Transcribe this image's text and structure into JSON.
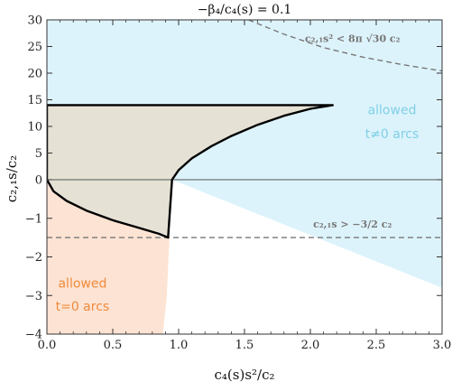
{
  "chart_data": {
    "type": "area",
    "title": "−β₄/c₄(s) = 0.1",
    "xlabel": "c₄(s)s²/c₂",
    "ylabel": "c₂,₁s/c₂",
    "xlim": [
      0,
      3
    ],
    "ylim": [
      -4,
      30
    ],
    "y_axis_piecewise": "linear for y between -4 and 0 (1 unit per tick); linear for y between 0 and 30 (5 units per tick)",
    "xticks": [
      "0.0",
      "0.5",
      "1.0",
      "1.5",
      "2.0",
      "2.5",
      "3.0"
    ],
    "yticks": [
      "−4",
      "−3",
      "−2",
      "−1",
      "0",
      "5",
      "10",
      "15",
      "20",
      "25",
      "30"
    ],
    "grid": false,
    "colors": {
      "blue_region": "#ddf3fb",
      "orange_region": "#fde3d3",
      "overlap_region": "#e5e2d5",
      "blue_text": "#7fd0e6",
      "orange_text": "#f08a3c",
      "dashed_lines": "#777777",
      "boundary": "#000000"
    },
    "series": [
      {
        "name": "blue region outer boundary",
        "style": "fill",
        "x": [
          0,
          0.95,
          3.0
        ],
        "y": [
          0,
          0,
          -2.8
        ]
      },
      {
        "name": "orange region right edge",
        "style": "fill",
        "x": [
          0,
          0.88,
          0.93,
          0.91,
          0.88
        ],
        "y": [
          0,
          -1.5,
          -1.5,
          -3.0,
          -4.0
        ]
      },
      {
        "name": "bold boundary",
        "style": "line",
        "x": [
          0,
          0,
          0.05,
          0.15,
          0.3,
          0.5,
          0.7,
          0.85,
          0.92,
          0.95,
          1.0,
          1.1,
          1.25,
          1.4,
          1.6,
          1.8,
          2.0,
          2.17,
          0
        ],
        "y": [
          14,
          0,
          -0.3,
          -0.55,
          -0.8,
          -1.05,
          -1.25,
          -1.4,
          -1.5,
          0,
          1.8,
          4,
          6.3,
          8.2,
          10.3,
          12,
          13.3,
          14,
          14
        ]
      },
      {
        "name": "upper dashed bound",
        "style": "dashed",
        "x": [
          1.53,
          1.8,
          2.1,
          2.4,
          2.7,
          3.0
        ],
        "y": [
          30,
          27.3,
          24.8,
          23,
          21.6,
          20.4
        ]
      },
      {
        "name": "lower dashed bound",
        "style": "dashed",
        "x": [
          0,
          3.0
        ],
        "y": [
          -1.5,
          -1.5
        ]
      },
      {
        "name": "horizontal zero line",
        "style": "thin",
        "x": [
          0,
          3.0
        ],
        "y": [
          0,
          0
        ]
      }
    ],
    "annotations": [
      {
        "text": "c₂,₁s² < 8π √30 c₂",
        "x": 2.32,
        "y": 26.5
      },
      {
        "text": "c₂,₁s > −3/2 c₂",
        "x": 2.32,
        "y": -1.15
      },
      {
        "text": "allowed",
        "x": 2.62,
        "y": 13.0
      },
      {
        "text": "t≠0 arcs",
        "x": 2.62,
        "y": 8.5
      },
      {
        "text": "allowed",
        "x": 0.27,
        "y": -2.7
      },
      {
        "text": "t=0 arcs",
        "x": 0.27,
        "y": -3.3
      }
    ]
  }
}
